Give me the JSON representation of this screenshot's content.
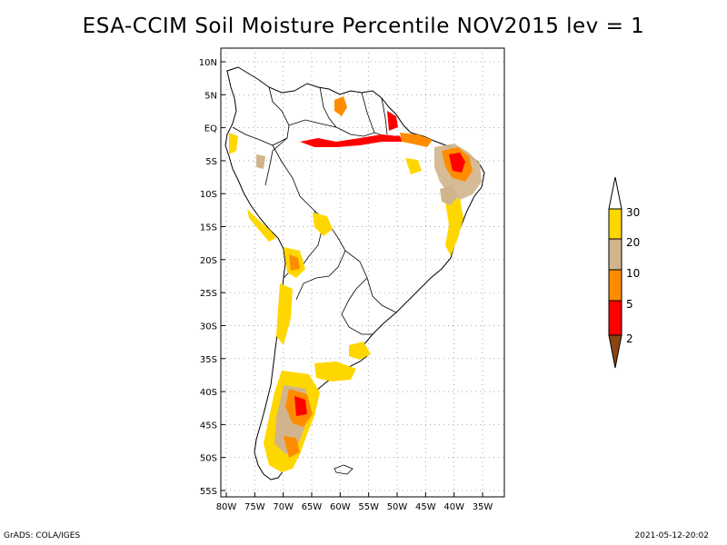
{
  "title": "ESA-CCIM Soil Moisture Percentile NOV2015 lev = 1",
  "map": {
    "lat_labels": [
      "10N",
      "5N",
      "EQ",
      "5S",
      "10S",
      "15S",
      "20S",
      "25S",
      "30S",
      "35S",
      "40S",
      "45S",
      "50S",
      "55S"
    ],
    "lon_labels": [
      "80W",
      "75W",
      "70W",
      "65W",
      "60W",
      "55W",
      "50W",
      "45W",
      "40W",
      "35W"
    ]
  },
  "legend": {
    "levels": [
      "2",
      "5",
      "10",
      "20",
      "30"
    ],
    "colors": {
      "below_2": "#8b4513",
      "2_5": "#ff0000",
      "5_10": "#ff8c00",
      "10_20": "#d2b48c",
      "20_30": "#ffd700",
      "above_30": "#ffffff"
    }
  },
  "footer": {
    "left": "GrADS: COLA/IGES",
    "right": "2021-05-12-20:02"
  }
}
